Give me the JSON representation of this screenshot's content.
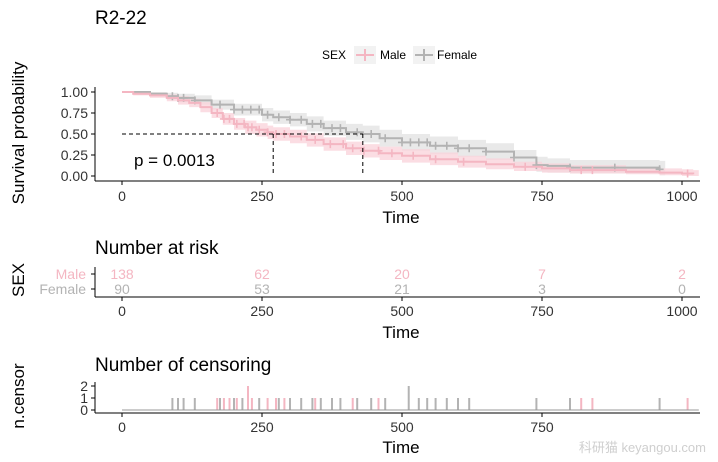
{
  "chart_data": [
    {
      "type": "line",
      "subtype": "kaplan-meier",
      "title": "R2-22",
      "xlabel": "Time",
      "ylabel": "Survival probability",
      "xlim": [
        0,
        1030
      ],
      "ylim": [
        0,
        1.05
      ],
      "x_ticks": [
        0,
        250,
        500,
        750,
        1000
      ],
      "y_ticks": [
        0.0,
        0.25,
        0.5,
        0.75,
        1.0
      ],
      "y_tick_labels": [
        "0.00",
        "0.25",
        "0.50",
        "0.75",
        "1.00"
      ],
      "grid": false,
      "legend": {
        "title": "SEX",
        "position": "top",
        "entries": [
          "Male",
          "Female"
        ]
      },
      "annotation": "p = 0.0013",
      "median_survival": [
        {
          "name": "Male",
          "x": 270,
          "y": 0.5
        },
        {
          "name": "Female",
          "x": 430,
          "y": 0.5
        }
      ],
      "series": [
        {
          "name": "Male",
          "color": "#f4b6c2",
          "band_color": "#f9d2da",
          "x": [
            0,
            20,
            50,
            80,
            100,
            120,
            140,
            160,
            180,
            200,
            220,
            240,
            260,
            270,
            300,
            330,
            360,
            400,
            430,
            460,
            500,
            550,
            600,
            650,
            700,
            750,
            800,
            900,
            960,
            1000,
            1020
          ],
          "y": [
            1.0,
            0.98,
            0.96,
            0.93,
            0.9,
            0.87,
            0.82,
            0.75,
            0.68,
            0.62,
            0.58,
            0.55,
            0.52,
            0.5,
            0.47,
            0.43,
            0.38,
            0.33,
            0.3,
            0.27,
            0.24,
            0.2,
            0.17,
            0.14,
            0.11,
            0.09,
            0.07,
            0.05,
            0.04,
            0.03,
            0.02
          ],
          "lower": [
            1.0,
            0.96,
            0.93,
            0.89,
            0.85,
            0.82,
            0.76,
            0.69,
            0.61,
            0.55,
            0.5,
            0.47,
            0.44,
            0.42,
            0.39,
            0.35,
            0.3,
            0.25,
            0.22,
            0.19,
            0.16,
            0.13,
            0.1,
            0.08,
            0.06,
            0.04,
            0.03,
            0.02,
            0.01,
            0.0,
            0.0
          ],
          "upper": [
            1.0,
            1.0,
            0.99,
            0.97,
            0.95,
            0.92,
            0.88,
            0.81,
            0.75,
            0.69,
            0.66,
            0.63,
            0.6,
            0.58,
            0.55,
            0.51,
            0.46,
            0.41,
            0.38,
            0.35,
            0.32,
            0.28,
            0.24,
            0.21,
            0.17,
            0.15,
            0.13,
            0.1,
            0.09,
            0.08,
            0.07
          ],
          "censor_x": [
            170,
            182,
            192,
            205,
            218,
            225,
            232,
            245,
            260,
            275,
            290,
            320,
            345,
            372,
            395,
            412,
            432,
            458,
            482,
            520,
            560,
            610,
            720,
            820,
            840,
            1010
          ]
        },
        {
          "name": "Female",
          "color": "#b3b3b3",
          "band_color": "#e2e2e2",
          "x": [
            0,
            50,
            80,
            100,
            130,
            160,
            200,
            250,
            270,
            300,
            330,
            360,
            400,
            430,
            460,
            500,
            550,
            600,
            650,
            700,
            740,
            760,
            800,
            900,
            960
          ],
          "y": [
            1.0,
            0.98,
            0.95,
            0.93,
            0.9,
            0.85,
            0.79,
            0.73,
            0.7,
            0.67,
            0.62,
            0.57,
            0.52,
            0.5,
            0.45,
            0.4,
            0.36,
            0.33,
            0.29,
            0.22,
            0.13,
            0.12,
            0.1,
            0.1,
            0.08
          ],
          "lower": [
            1.0,
            0.95,
            0.91,
            0.88,
            0.85,
            0.79,
            0.72,
            0.65,
            0.62,
            0.59,
            0.53,
            0.48,
            0.43,
            0.4,
            0.35,
            0.3,
            0.26,
            0.23,
            0.19,
            0.13,
            0.05,
            0.04,
            0.03,
            0.03,
            0.01
          ],
          "upper": [
            1.0,
            1.0,
            0.99,
            0.98,
            0.96,
            0.91,
            0.86,
            0.81,
            0.78,
            0.75,
            0.71,
            0.66,
            0.62,
            0.6,
            0.55,
            0.5,
            0.47,
            0.43,
            0.39,
            0.31,
            0.23,
            0.21,
            0.19,
            0.19,
            0.18
          ],
          "censor_x": [
            90,
            100,
            110,
            130,
            175,
            200,
            215,
            230,
            245,
            260,
            280,
            300,
            320,
            340,
            355,
            375,
            390,
            420,
            445,
            470,
            500,
            515,
            530,
            545,
            560,
            580,
            600,
            620,
            650,
            700,
            740,
            800,
            880,
            960
          ]
        }
      ]
    },
    {
      "type": "table",
      "title": "Number at risk",
      "ylabel": "SEX",
      "xlabel": "Time",
      "x_ticks": [
        0,
        250,
        500,
        750,
        1000
      ],
      "rows": [
        {
          "name": "Male",
          "color": "#f4b6c2",
          "values": [
            "138",
            "62",
            "20",
            "7",
            "2"
          ]
        },
        {
          "name": "Female",
          "color": "#b3b3b3",
          "values": [
            "90",
            "53",
            "21",
            "3",
            "0"
          ]
        }
      ]
    },
    {
      "type": "bar",
      "title": "Number of censoring",
      "ylabel": "n.censor",
      "xlabel": "Time",
      "x_ticks": [
        0,
        250,
        500,
        750
      ],
      "y_ticks": [
        0,
        1,
        2
      ],
      "ylim": [
        0,
        2.2
      ],
      "bars": [
        {
          "x": 90,
          "n": 1,
          "group": "Female"
        },
        {
          "x": 100,
          "n": 1,
          "group": "Female"
        },
        {
          "x": 110,
          "n": 1,
          "group": "Female"
        },
        {
          "x": 130,
          "n": 1,
          "group": "Female"
        },
        {
          "x": 170,
          "n": 1,
          "group": "Male"
        },
        {
          "x": 175,
          "n": 1,
          "group": "Female"
        },
        {
          "x": 182,
          "n": 1,
          "group": "Male"
        },
        {
          "x": 192,
          "n": 1,
          "group": "Male"
        },
        {
          "x": 200,
          "n": 1,
          "group": "Female"
        },
        {
          "x": 205,
          "n": 1,
          "group": "Male"
        },
        {
          "x": 215,
          "n": 1,
          "group": "Female"
        },
        {
          "x": 225,
          "n": 2,
          "group": "Male"
        },
        {
          "x": 232,
          "n": 1,
          "group": "Male"
        },
        {
          "x": 245,
          "n": 1,
          "group": "Female"
        },
        {
          "x": 260,
          "n": 1,
          "group": "Male"
        },
        {
          "x": 275,
          "n": 1,
          "group": "Male"
        },
        {
          "x": 280,
          "n": 1,
          "group": "Female"
        },
        {
          "x": 290,
          "n": 1,
          "group": "Male"
        },
        {
          "x": 300,
          "n": 1,
          "group": "Female"
        },
        {
          "x": 320,
          "n": 1,
          "group": "Female"
        },
        {
          "x": 340,
          "n": 1,
          "group": "Female"
        },
        {
          "x": 345,
          "n": 1,
          "group": "Male"
        },
        {
          "x": 355,
          "n": 1,
          "group": "Female"
        },
        {
          "x": 375,
          "n": 1,
          "group": "Female"
        },
        {
          "x": 390,
          "n": 1,
          "group": "Female"
        },
        {
          "x": 412,
          "n": 1,
          "group": "Male"
        },
        {
          "x": 420,
          "n": 1,
          "group": "Female"
        },
        {
          "x": 445,
          "n": 1,
          "group": "Female"
        },
        {
          "x": 458,
          "n": 1,
          "group": "Male"
        },
        {
          "x": 470,
          "n": 1,
          "group": "Female"
        },
        {
          "x": 512,
          "n": 2,
          "group": "Female"
        },
        {
          "x": 530,
          "n": 1,
          "group": "Female"
        },
        {
          "x": 545,
          "n": 1,
          "group": "Female"
        },
        {
          "x": 560,
          "n": 1,
          "group": "Female"
        },
        {
          "x": 580,
          "n": 1,
          "group": "Female"
        },
        {
          "x": 600,
          "n": 1,
          "group": "Female"
        },
        {
          "x": 620,
          "n": 1,
          "group": "Female"
        },
        {
          "x": 740,
          "n": 1,
          "group": "Female"
        },
        {
          "x": 800,
          "n": 1,
          "group": "Female"
        },
        {
          "x": 820,
          "n": 1,
          "group": "Male"
        },
        {
          "x": 840,
          "n": 1,
          "group": "Male"
        },
        {
          "x": 960,
          "n": 1,
          "group": "Female"
        },
        {
          "x": 1010,
          "n": 1,
          "group": "Male"
        }
      ]
    }
  ],
  "watermark": "科研猫 keyangou.com"
}
